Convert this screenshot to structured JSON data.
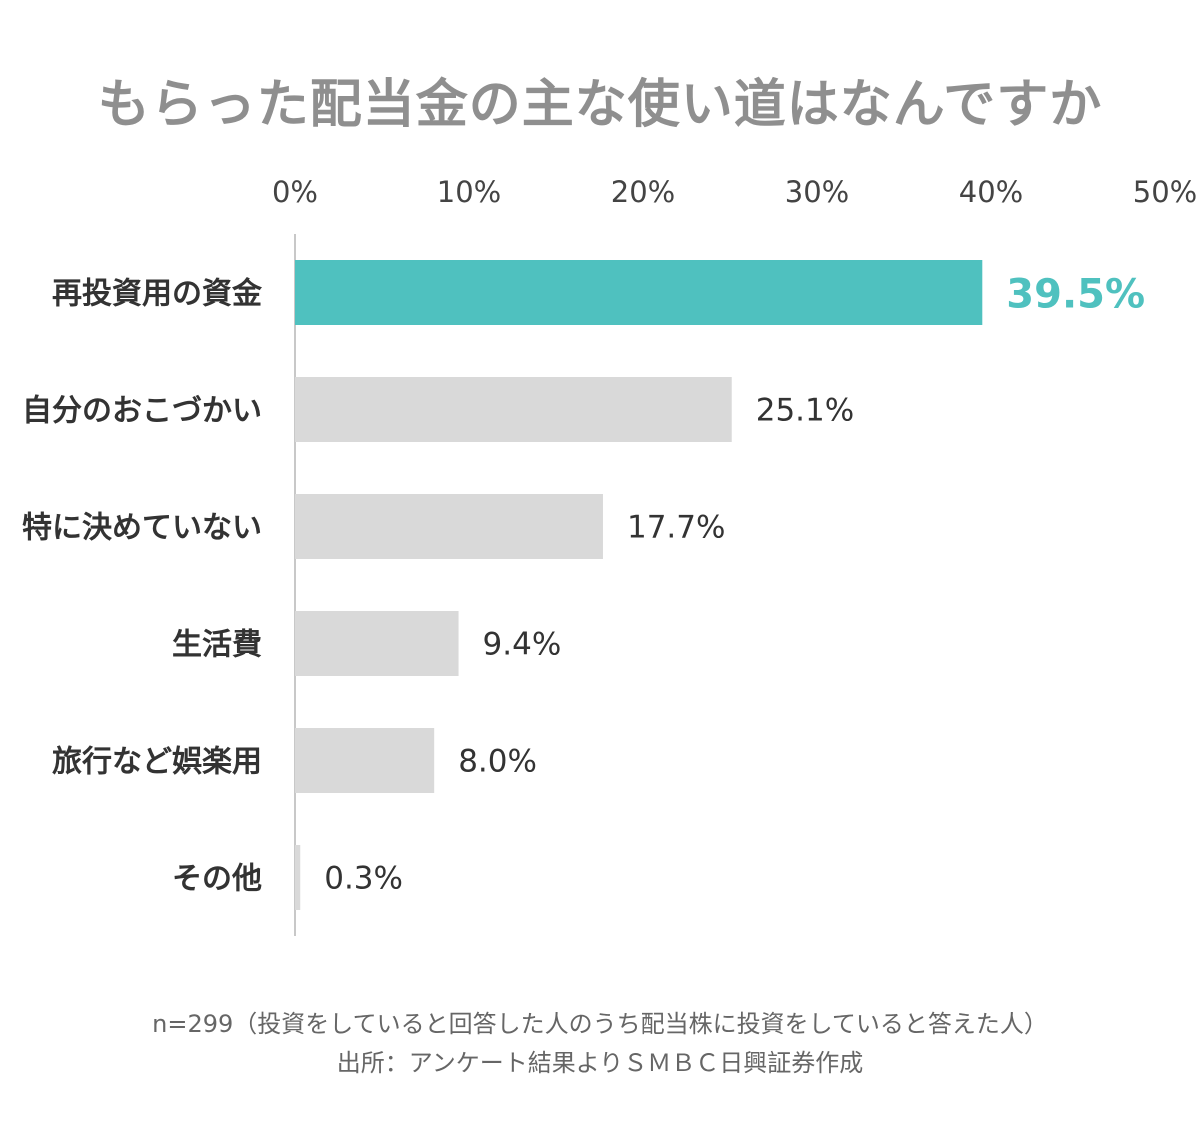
{
  "title": "もらった配当金の主な使い道はなんですか",
  "footnote": {
    "sample": "n=299（投資をしていると回答した人のうち配当株に投資をしていると答えた人）",
    "source": "出所：アンケート結果よりＳＭＢＣ日興証券作成"
  },
  "chart_data": {
    "type": "bar",
    "orientation": "horizontal",
    "categories": [
      "再投資用の資金",
      "自分のおこづかい",
      "特に決めていない",
      "生活費",
      "旅行など娯楽用",
      "その他"
    ],
    "values": [
      39.5,
      25.1,
      17.7,
      9.4,
      8.0,
      0.3
    ],
    "value_labels": [
      "39.5%",
      "25.1%",
      "17.7%",
      "9.4%",
      "8.0%",
      "0.3%"
    ],
    "xlim": [
      0,
      50
    ],
    "xticks": [
      0,
      10,
      20,
      30,
      40,
      50
    ],
    "xtick_labels": [
      "0%",
      "10%",
      "20%",
      "30%",
      "40%",
      "50%"
    ],
    "axis_position": "top",
    "grid": false,
    "highlight_index": 0,
    "colors": {
      "highlight": "#4fc1bf",
      "default": "#d9d9d9",
      "axis": "#c8c8c8",
      "tick_text": "#444444",
      "category_text": "#333333",
      "label_text": "#333333"
    }
  }
}
